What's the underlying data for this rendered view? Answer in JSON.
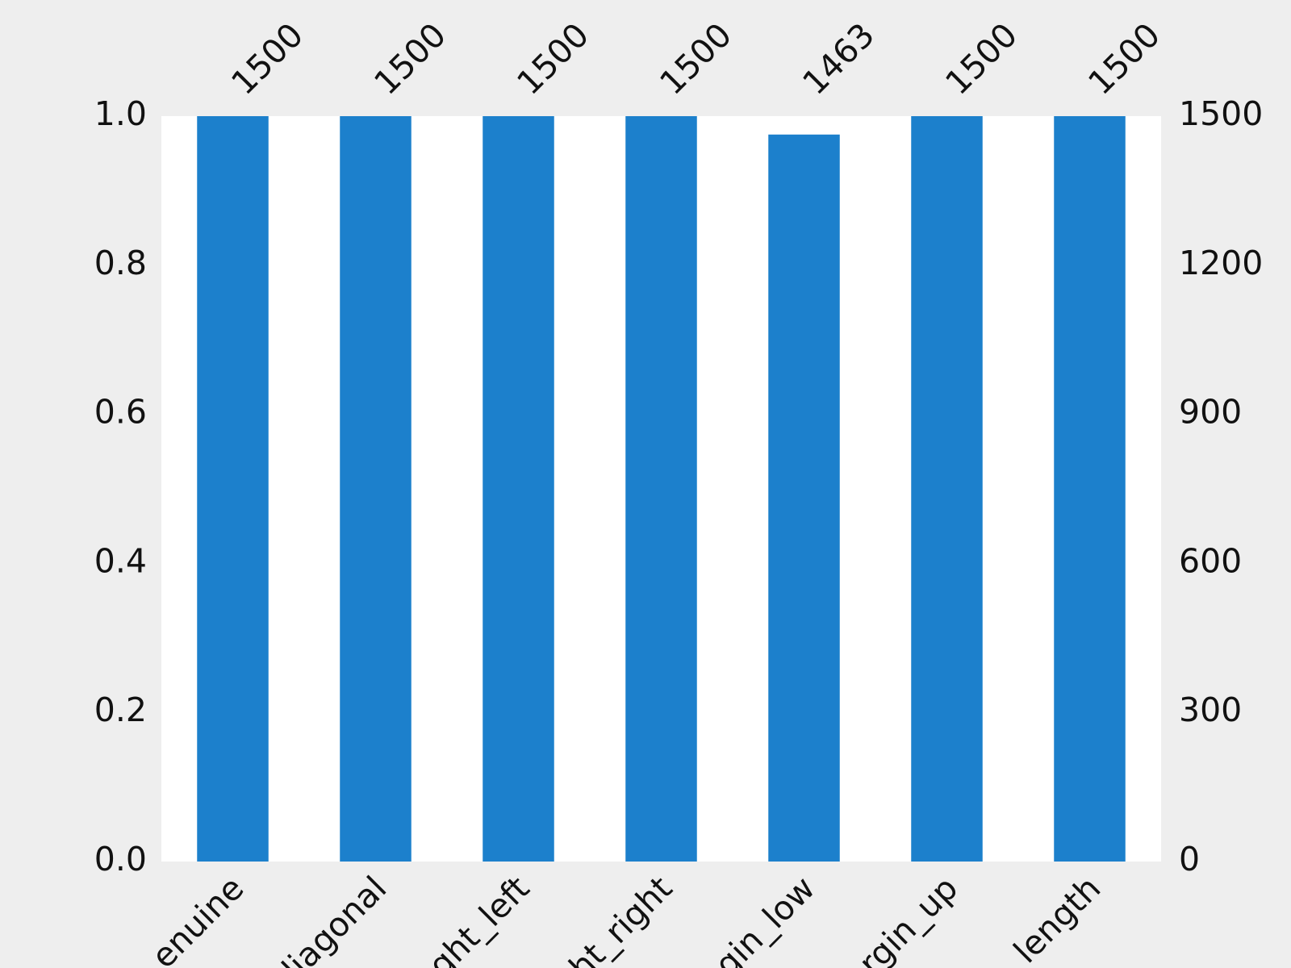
{
  "chart_data": {
    "type": "bar",
    "categories": [
      "enuine",
      "diagonal",
      "ght_left",
      "ht_right",
      "gin_low",
      "rgin_up",
      "length"
    ],
    "series": [
      {
        "color": "#1c80cc",
        "axis": "y2",
        "values": [
          1500,
          1500,
          1500,
          1500,
          1463,
          1500,
          1500
        ]
      }
    ],
    "ylim": [
      0,
      1
    ],
    "yticks": [
      {
        "value": 0,
        "label": "0.0"
      },
      0.2,
      0.4,
      0.6,
      0.8,
      {
        "value": 1,
        "label": "1.0"
      }
    ],
    "y2lim": [
      0,
      1500
    ],
    "y2ticks": [
      0,
      300,
      600,
      900,
      1200,
      1500
    ],
    "grid": false
  }
}
